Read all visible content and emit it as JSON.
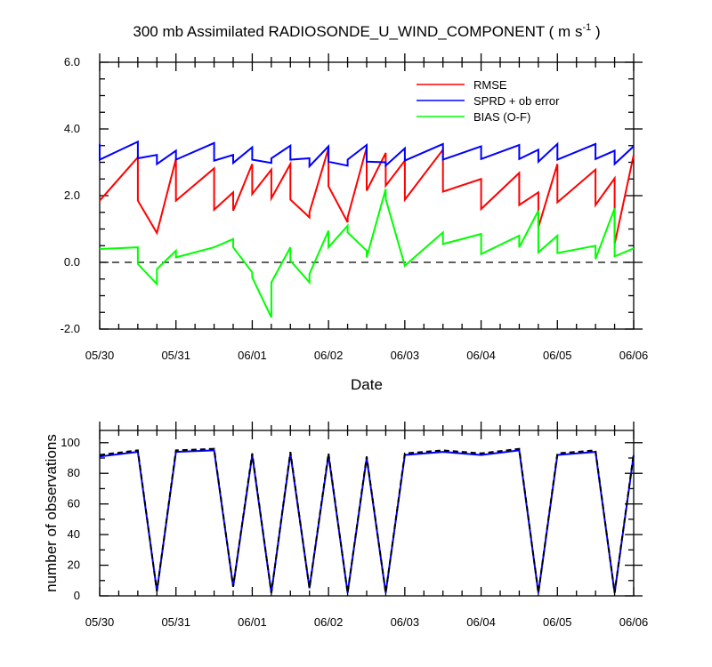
{
  "chart_data": [
    {
      "type": "line",
      "title_main": "300 mb Assimilated RADIOSONDE_U_WIND_COMPONENT ( m s",
      "title_sup": "-1",
      "title_end": " )",
      "xlabel": "Date",
      "ylabel": "",
      "x_tick_labels": [
        "05/30",
        "05/31",
        "06/01",
        "06/02",
        "06/03",
        "06/04",
        "06/05",
        "06/06"
      ],
      "xlim_days": [
        0,
        7
      ],
      "ylim": [
        -2.0,
        6.0
      ],
      "y_ticks": [
        -2.0,
        0.0,
        2.0,
        4.0,
        6.0
      ],
      "y_tick_labels": [
        "-2.0",
        "0.0",
        "2.0",
        "4.0",
        "6.0"
      ],
      "zero_line": "dashed",
      "legend_position": "top-right",
      "series": [
        {
          "name": "RMSE",
          "color": "#ff0000",
          "points": [
            [
              0,
              1.85
            ],
            [
              0.5,
              3.15
            ],
            [
              0.5,
              1.85
            ],
            [
              0.75,
              0.88
            ],
            [
              1.0,
              3.1
            ],
            [
              1.0,
              1.85
            ],
            [
              1.5,
              2.82
            ],
            [
              1.5,
              1.58
            ],
            [
              1.75,
              2.1
            ],
            [
              1.75,
              1.55
            ],
            [
              2.0,
              2.95
            ],
            [
              2.0,
              2.05
            ],
            [
              2.25,
              2.78
            ],
            [
              2.25,
              1.92
            ],
            [
              2.5,
              2.95
            ],
            [
              2.5,
              1.88
            ],
            [
              2.75,
              1.35
            ],
            [
              2.75,
              1.5
            ],
            [
              3.0,
              3.42
            ],
            [
              3.0,
              2.28
            ],
            [
              3.25,
              1.2
            ],
            [
              3.25,
              1.35
            ],
            [
              3.5,
              3.45
            ],
            [
              3.5,
              2.15
            ],
            [
              3.75,
              3.28
            ],
            [
              3.75,
              2.3
            ],
            [
              4.0,
              3.05
            ],
            [
              4.0,
              1.88
            ],
            [
              4.5,
              3.38
            ],
            [
              4.5,
              2.12
            ],
            [
              5.0,
              2.5
            ],
            [
              5.0,
              1.6
            ],
            [
              5.5,
              2.68
            ],
            [
              5.5,
              1.72
            ],
            [
              5.75,
              2.1
            ],
            [
              5.75,
              1.05
            ],
            [
              6.0,
              2.95
            ],
            [
              6.0,
              1.8
            ],
            [
              6.5,
              2.78
            ],
            [
              6.5,
              1.72
            ],
            [
              6.75,
              2.52
            ],
            [
              6.75,
              0.55
            ],
            [
              7.0,
              3.22
            ]
          ]
        },
        {
          "name": "SPRD + ob error",
          "color": "#0000ff",
          "points": [
            [
              0,
              3.55
            ],
            [
              0,
              3.08
            ],
            [
              0.5,
              3.62
            ],
            [
              0.5,
              3.12
            ],
            [
              0.75,
              3.22
            ],
            [
              0.75,
              2.95
            ],
            [
              1.0,
              3.35
            ],
            [
              1.0,
              3.08
            ],
            [
              1.5,
              3.58
            ],
            [
              1.5,
              3.05
            ],
            [
              1.75,
              3.22
            ],
            [
              1.75,
              2.98
            ],
            [
              2.0,
              3.45
            ],
            [
              2.0,
              3.08
            ],
            [
              2.25,
              2.98
            ],
            [
              2.25,
              3.12
            ],
            [
              2.5,
              3.5
            ],
            [
              2.5,
              3.08
            ],
            [
              2.75,
              3.12
            ],
            [
              2.75,
              2.88
            ],
            [
              3.0,
              3.48
            ],
            [
              3.0,
              3.02
            ],
            [
              3.25,
              2.9
            ],
            [
              3.25,
              3.08
            ],
            [
              3.5,
              3.52
            ],
            [
              3.5,
              3.02
            ],
            [
              3.75,
              3.0
            ],
            [
              3.75,
              2.9
            ],
            [
              4.0,
              3.42
            ],
            [
              4.0,
              3.05
            ],
            [
              4.5,
              3.55
            ],
            [
              4.5,
              3.08
            ],
            [
              5.0,
              3.48
            ],
            [
              5.0,
              3.1
            ],
            [
              5.5,
              3.52
            ],
            [
              5.5,
              3.1
            ],
            [
              5.75,
              3.38
            ],
            [
              5.75,
              3.02
            ],
            [
              6.0,
              3.55
            ],
            [
              6.0,
              3.08
            ],
            [
              6.5,
              3.55
            ],
            [
              6.5,
              3.1
            ],
            [
              6.75,
              3.35
            ],
            [
              6.75,
              2.95
            ],
            [
              7.0,
              3.48
            ]
          ]
        },
        {
          "name": "BIAS (O-F)",
          "color": "#00ff00",
          "points": [
            [
              0,
              0.4
            ],
            [
              0.5,
              0.45
            ],
            [
              0.5,
              -0.05
            ],
            [
              0.75,
              -0.65
            ],
            [
              0.75,
              -0.2
            ],
            [
              1.0,
              0.35
            ],
            [
              1.0,
              0.15
            ],
            [
              1.5,
              0.45
            ],
            [
              1.75,
              0.7
            ],
            [
              1.75,
              0.45
            ],
            [
              2.0,
              -0.3
            ],
            [
              2.0,
              -0.45
            ],
            [
              2.25,
              -1.65
            ],
            [
              2.25,
              -0.6
            ],
            [
              2.5,
              0.45
            ],
            [
              2.5,
              0.05
            ],
            [
              2.75,
              -0.6
            ],
            [
              2.75,
              -0.35
            ],
            [
              3.0,
              0.95
            ],
            [
              3.0,
              0.45
            ],
            [
              3.25,
              1.1
            ],
            [
              3.25,
              0.9
            ],
            [
              3.5,
              0.35
            ],
            [
              3.5,
              0.15
            ],
            [
              3.75,
              2.2
            ],
            [
              3.75,
              1.9
            ],
            [
              4.0,
              -0.1
            ],
            [
              4.5,
              0.9
            ],
            [
              4.5,
              0.55
            ],
            [
              5.0,
              0.85
            ],
            [
              5.0,
              0.25
            ],
            [
              5.5,
              0.8
            ],
            [
              5.5,
              0.45
            ],
            [
              5.75,
              1.55
            ],
            [
              5.75,
              0.3
            ],
            [
              6.0,
              0.8
            ],
            [
              6.0,
              0.28
            ],
            [
              6.5,
              0.5
            ],
            [
              6.5,
              0.1
            ],
            [
              6.75,
              1.62
            ],
            [
              6.75,
              0.18
            ],
            [
              7.0,
              0.42
            ]
          ]
        }
      ]
    },
    {
      "type": "line",
      "title": "",
      "xlabel": "",
      "ylabel": "number of observations",
      "x_tick_labels": [
        "05/30",
        "05/31",
        "06/01",
        "06/02",
        "06/03",
        "06/04",
        "06/05",
        "06/06"
      ],
      "xlim_days": [
        0,
        7
      ],
      "ylim": [
        0,
        108
      ],
      "y_ticks": [
        0,
        20,
        40,
        60,
        80,
        100
      ],
      "y_tick_labels": [
        "0",
        "20",
        "40",
        "60",
        "80",
        "100"
      ],
      "series": [
        {
          "style": "solid",
          "color": "#0000ff",
          "points": [
            [
              0,
              91
            ],
            [
              0.5,
              94
            ],
            [
              0.75,
              3
            ],
            [
              1.0,
              94
            ],
            [
              1.5,
              95
            ],
            [
              1.75,
              6
            ],
            [
              2.0,
              92
            ],
            [
              2.25,
              2
            ],
            [
              2.5,
              93
            ],
            [
              2.75,
              5
            ],
            [
              3.0,
              92
            ],
            [
              3.25,
              2
            ],
            [
              3.5,
              90
            ],
            [
              3.75,
              2
            ],
            [
              4.0,
              92
            ],
            [
              4.5,
              94
            ],
            [
              5.0,
              92
            ],
            [
              5.5,
              95
            ],
            [
              5.75,
              2
            ],
            [
              6.0,
              92
            ],
            [
              6.5,
              94
            ],
            [
              6.75,
              2
            ],
            [
              7.0,
              92
            ]
          ]
        },
        {
          "style": "dashed",
          "color": "#000000",
          "points": [
            [
              0,
              92
            ],
            [
              0.5,
              95
            ],
            [
              0.75,
              3
            ],
            [
              1.0,
              95
            ],
            [
              1.5,
              96
            ],
            [
              1.75,
              6
            ],
            [
              2.0,
              93
            ],
            [
              2.25,
              2
            ],
            [
              2.5,
              94
            ],
            [
              2.75,
              5
            ],
            [
              3.0,
              93
            ],
            [
              3.25,
              2
            ],
            [
              3.5,
              91
            ],
            [
              3.75,
              2
            ],
            [
              4.0,
              93
            ],
            [
              4.5,
              95
            ],
            [
              5.0,
              93
            ],
            [
              5.5,
              96
            ],
            [
              5.75,
              2
            ],
            [
              6.0,
              93
            ],
            [
              6.5,
              95
            ],
            [
              6.75,
              2
            ],
            [
              7.0,
              93
            ]
          ]
        }
      ]
    }
  ]
}
